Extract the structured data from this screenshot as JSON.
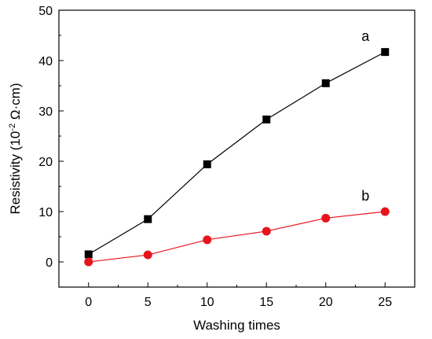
{
  "chart_data": {
    "type": "line",
    "title": "",
    "xlabel": "Washing times",
    "ylabel": {
      "prefix": "Resistivity (10",
      "exponent": "-2",
      "suffix": " Ω·cm)"
    },
    "xlim": [
      -2.5,
      27.5
    ],
    "ylim": [
      -5,
      50
    ],
    "xticks": [
      0,
      5,
      10,
      15,
      20,
      25
    ],
    "yticks": [
      0,
      10,
      20,
      30,
      40,
      50
    ],
    "grid": false,
    "x": [
      0,
      5,
      10,
      15,
      20,
      25
    ],
    "series": [
      {
        "name": "a",
        "marker": "square",
        "color": "#000000",
        "values": [
          1.5,
          8.5,
          19.4,
          28.3,
          35.5,
          41.7
        ]
      },
      {
        "name": "b",
        "marker": "circle",
        "color": "#e8141c",
        "values": [
          0.0,
          1.4,
          4.4,
          6.1,
          8.7,
          10.0
        ]
      }
    ]
  }
}
